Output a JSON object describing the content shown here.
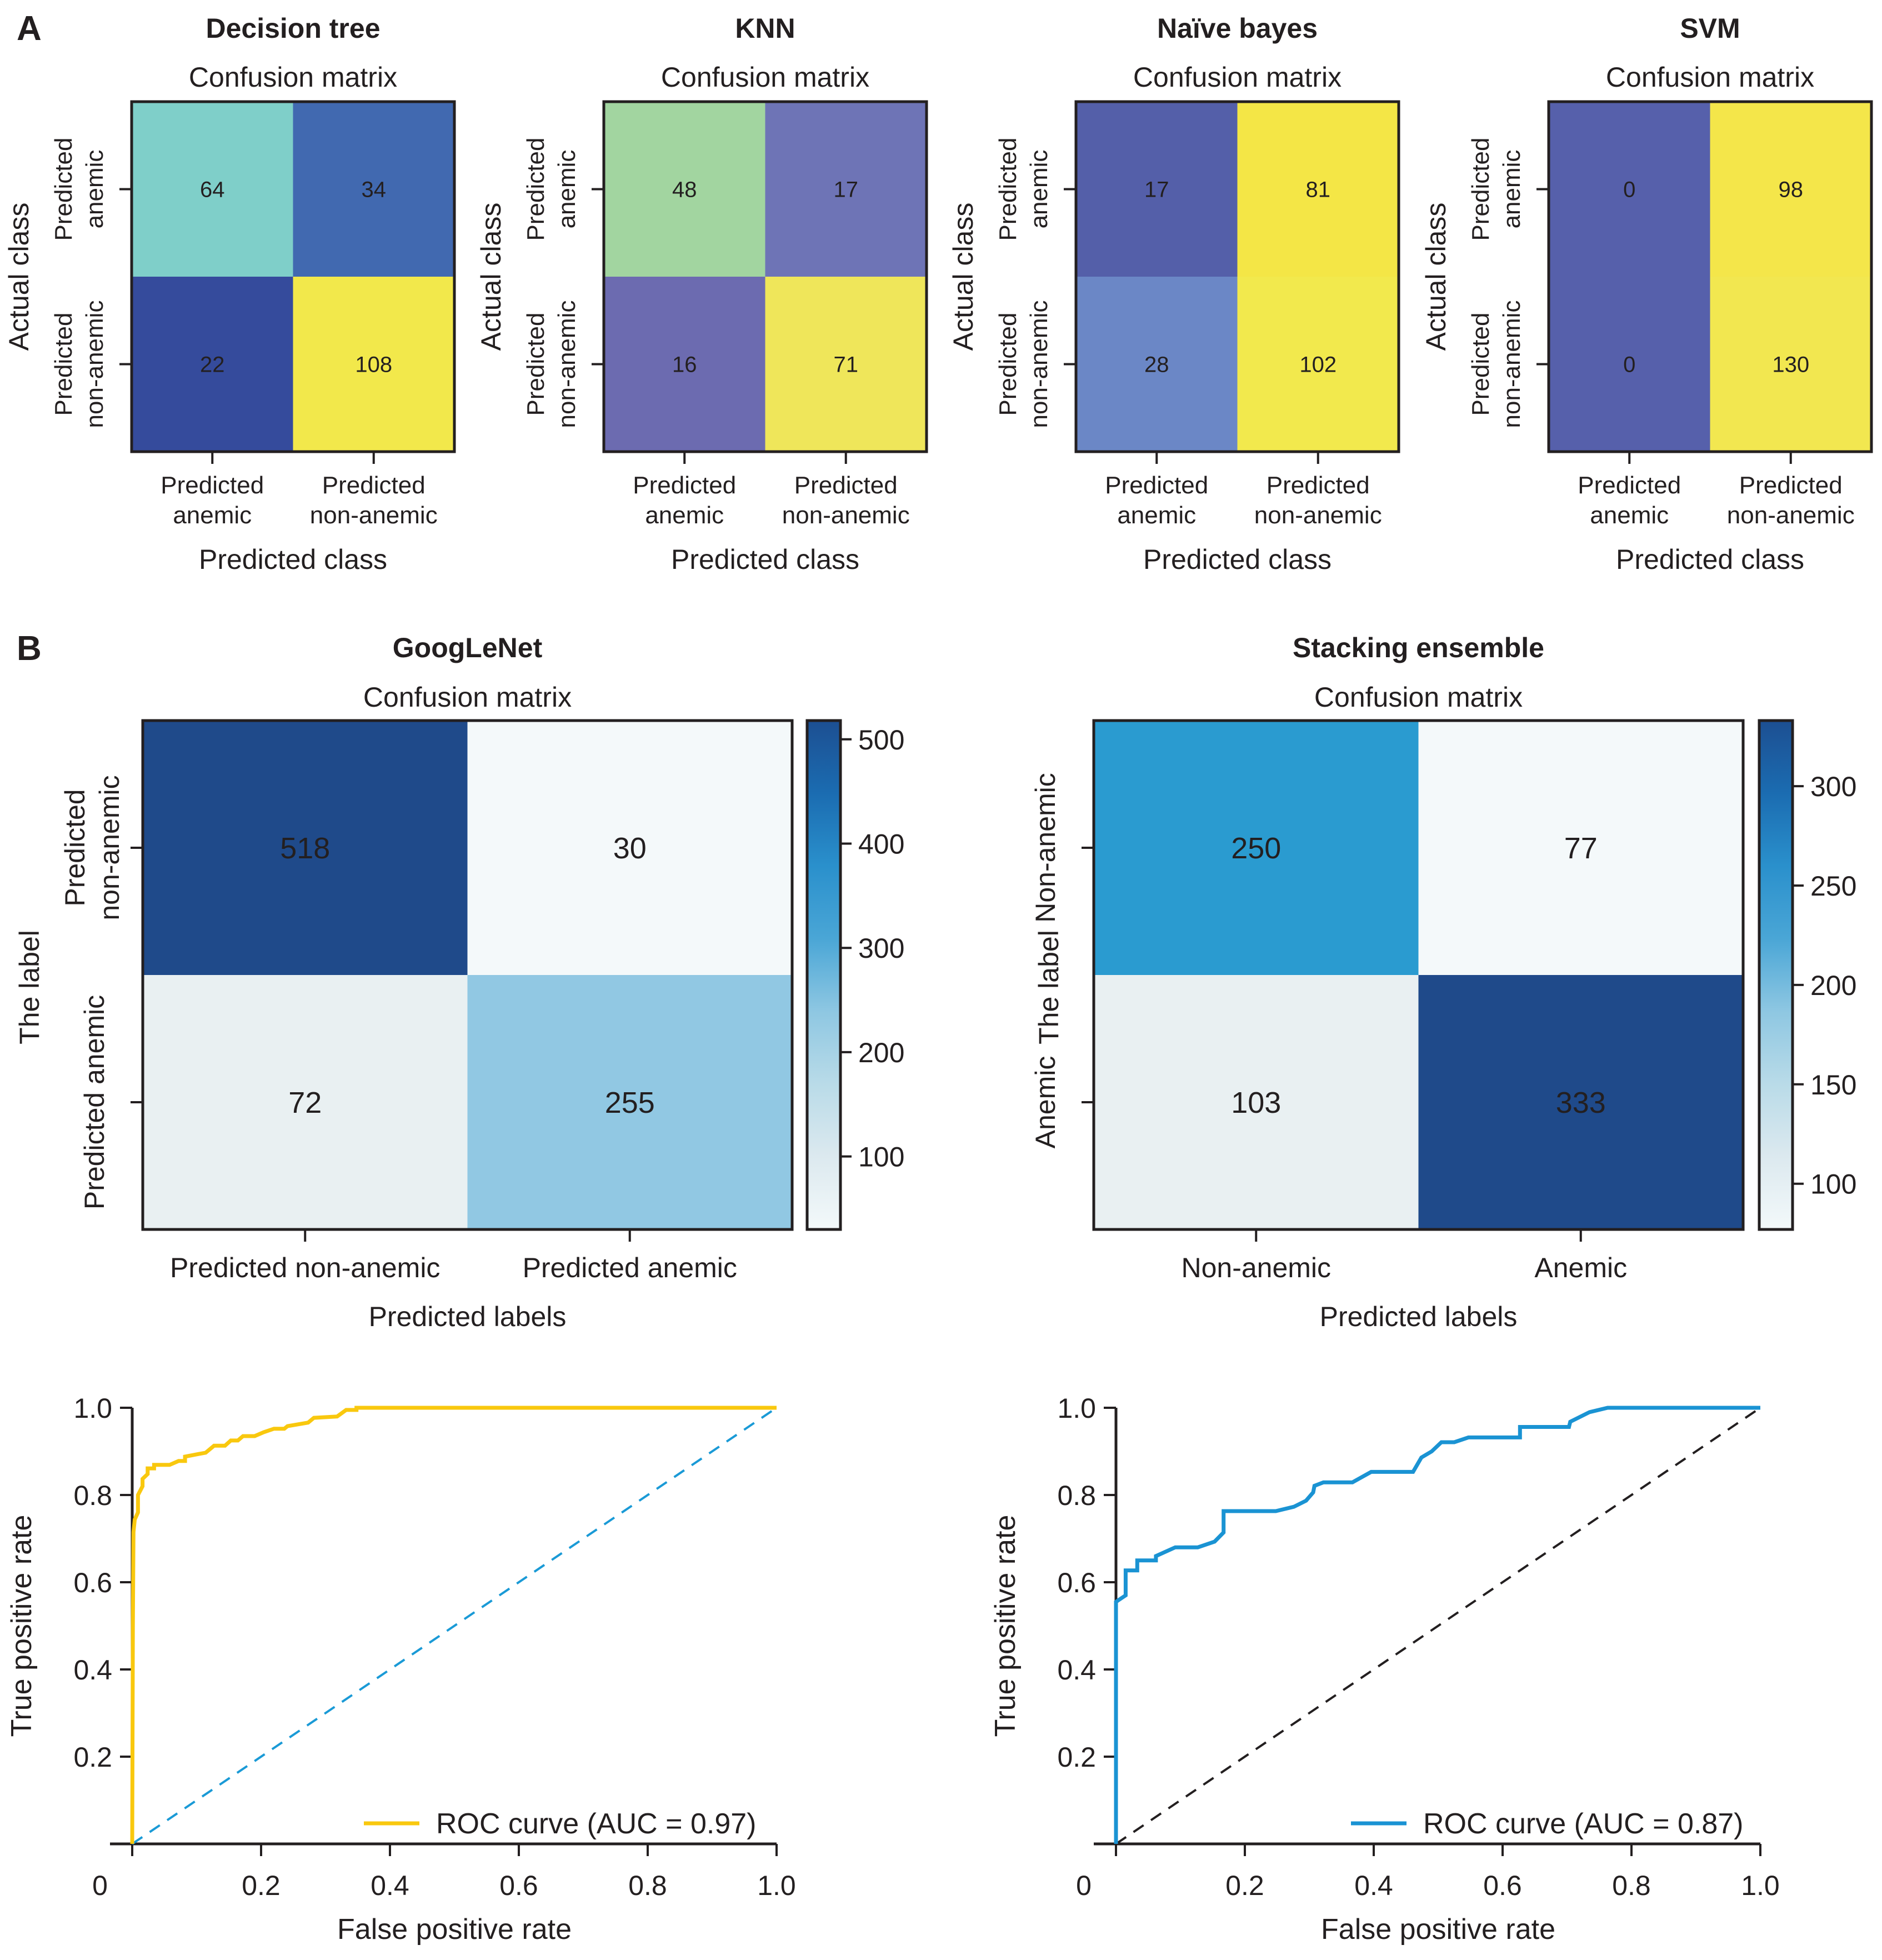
{
  "figure": {
    "panel_a_letter": "A",
    "panel_b_letter": "B"
  },
  "chart_data": [
    {
      "type": "heatmap",
      "id": "dt",
      "model": "Decision tree",
      "title": "Confusion matrix",
      "xlabel": "Predicted class",
      "ylabel": "Actual class",
      "x_ticks": [
        [
          "Predicted",
          "anemic"
        ],
        [
          "Predicted",
          "non-anemic"
        ]
      ],
      "y_ticks": [
        [
          "Predicted",
          "anemic"
        ],
        [
          "Predicted",
          "non-anemic"
        ]
      ],
      "values": [
        [
          64,
          34
        ],
        [
          22,
          108
        ]
      ],
      "cell_colors": [
        [
          "#7fcfc9",
          "#4169b0"
        ],
        [
          "#354b9c",
          "#f2e84b"
        ]
      ],
      "text_colors": [
        [
          "#231f20",
          "#231f20"
        ],
        [
          "#231f20",
          "#231f20"
        ]
      ]
    },
    {
      "type": "heatmap",
      "id": "knn",
      "model": "KNN",
      "title": "Confusion matrix",
      "xlabel": "Predicted class",
      "ylabel": "Actual class",
      "x_ticks": [
        [
          "Predicted",
          "anemic"
        ],
        [
          "Predicted",
          "non-anemic"
        ]
      ],
      "y_ticks": [
        [
          "Predicted",
          "anemic"
        ],
        [
          "Predicted",
          "non-anemic"
        ]
      ],
      "values": [
        [
          48,
          17
        ],
        [
          16,
          71
        ]
      ],
      "cell_colors": [
        [
          "#a2d5a0",
          "#6e74b6"
        ],
        [
          "#6c6bb0",
          "#efe65a"
        ]
      ],
      "text_colors": [
        [
          "#231f20",
          "#231f20"
        ],
        [
          "#231f20",
          "#231f20"
        ]
      ]
    },
    {
      "type": "heatmap",
      "id": "nb",
      "model": "Naïve bayes",
      "title": "Confusion matrix",
      "xlabel": "Predicted class",
      "ylabel": "Actual class",
      "x_ticks": [
        [
          "Predicted",
          "anemic"
        ],
        [
          "Predicted",
          "non-anemic"
        ]
      ],
      "y_ticks": [
        [
          "Predicted",
          "anemic"
        ],
        [
          "Predicted",
          "non-anemic"
        ]
      ],
      "values": [
        [
          17,
          81
        ],
        [
          28,
          102
        ]
      ],
      "cell_colors": [
        [
          "#545fa9",
          "#f4e646"
        ],
        [
          "#6b87c6",
          "#f2e94d"
        ]
      ],
      "text_colors": [
        [
          "#231f20",
          "#231f20"
        ],
        [
          "#231f20",
          "#231f20"
        ]
      ]
    },
    {
      "type": "heatmap",
      "id": "svm",
      "model": "SVM",
      "title": "Confusion matrix",
      "xlabel": "Predicted class",
      "ylabel": "Actual class",
      "x_ticks": [
        [
          "Predicted",
          "anemic"
        ],
        [
          "Predicted",
          "non-anemic"
        ]
      ],
      "y_ticks": [
        [
          "Predicted",
          "anemic"
        ],
        [
          "Predicted",
          "non-anemic"
        ]
      ],
      "values": [
        [
          0,
          98
        ],
        [
          0,
          130
        ]
      ],
      "cell_colors": [
        [
          "#5660ab",
          "#f4e64a"
        ],
        [
          "#5660ab",
          "#f2e750"
        ]
      ],
      "text_colors": [
        [
          "#231f20",
          "#231f20"
        ],
        [
          "#231f20",
          "#231f20"
        ]
      ]
    },
    {
      "type": "heatmap",
      "id": "googlenet",
      "model": "GoogLeNet",
      "title": "Confusion matrix",
      "xlabel": "Predicted labels",
      "ylabel": "The label",
      "x_ticks": [
        [
          "Predicted non-anemic"
        ],
        [
          "Predicted anemic"
        ]
      ],
      "y_ticks": [
        [
          "Predicted",
          "non-anemic"
        ],
        [
          "Predicted anemic"
        ]
      ],
      "values": [
        [
          518,
          30
        ],
        [
          72,
          255
        ]
      ],
      "cell_colors": [
        [
          "#1f4a8a",
          "#f4f9fa"
        ],
        [
          "#e9f0f2",
          "#91c8e3"
        ]
      ],
      "text_colors": [
        [
          "#ffffff",
          "#231f20"
        ],
        [
          "#231f20",
          "#231f20"
        ]
      ],
      "colorbar": {
        "range": [
          30,
          518
        ],
        "ticks": [
          100,
          200,
          300,
          400,
          500
        ],
        "colormap": "Blues",
        "stops": [
          "#f3f9fa",
          "#dce9ef",
          "#b9dbe8",
          "#8ec7e2",
          "#4aa6d6",
          "#2a90cc",
          "#1b6cb1",
          "#1c4f92"
        ]
      }
    },
    {
      "type": "heatmap",
      "id": "stacking",
      "model": "Stacking ensemble",
      "title": "Confusion matrix",
      "xlabel": "Predicted labels",
      "ylabel": "The label",
      "x_ticks": [
        [
          "Non-anemic"
        ],
        [
          "Anemic"
        ]
      ],
      "y_ticks": [
        [
          "Non-anemic"
        ],
        [
          "Anemic"
        ]
      ],
      "values": [
        [
          250,
          77
        ],
        [
          103,
          333
        ]
      ],
      "cell_colors": [
        [
          "#2a9bd0",
          "#f4f9fa"
        ],
        [
          "#e9f0f2",
          "#1f4a8a"
        ]
      ],
      "text_colors": [
        [
          "#231f20",
          "#231f20"
        ],
        [
          "#231f20",
          "#ffffff"
        ]
      ],
      "colorbar": {
        "range": [
          77,
          333
        ],
        "ticks": [
          100,
          150,
          200,
          250,
          300
        ],
        "colormap": "Blues",
        "stops": [
          "#f3f9fa",
          "#dce9ef",
          "#b9dbe8",
          "#8ec7e2",
          "#4aa6d6",
          "#2a90cc",
          "#1b6cb1",
          "#1c4f92"
        ]
      }
    },
    {
      "type": "line",
      "id": "roc-googlenet",
      "xlabel": "False positive rate",
      "ylabel": "True positive rate",
      "xlim": [
        0,
        1.0
      ],
      "ylim": [
        0,
        1.0
      ],
      "x_ticks": [
        0,
        0.2,
        0.4,
        0.6,
        0.8,
        1.0
      ],
      "x_tick_labels": [
        "0",
        "0.2",
        "0.4",
        "0.6",
        "0.8",
        "1.0"
      ],
      "y_ticks": [
        0.2,
        0.4,
        0.6,
        0.8,
        1.0
      ],
      "y_tick_labels": [
        "0.2",
        "0.4",
        "0.6",
        "0.8",
        "1.0"
      ],
      "legend": "bottom-right",
      "series": [
        {
          "name": "ROC curve (AUC = 0.97)",
          "color": "#f9c80e",
          "style": "solid",
          "x": [
            0,
            0.001,
            0.002,
            0.004,
            0.009,
            0.009,
            0.016,
            0.016,
            0.024,
            0.024,
            0.034,
            0.034,
            0.058,
            0.072,
            0.082,
            0.082,
            0.103,
            0.114,
            0.127,
            0.144,
            0.153,
            0.164,
            0.172,
            0.19,
            0.204,
            0.22,
            0.236,
            0.241,
            0.273,
            0.282,
            0.318,
            0.332,
            0.348,
            0.348,
            1.0
          ],
          "y": [
            0,
            0.5,
            0.715,
            0.744,
            0.76,
            0.8,
            0.82,
            0.837,
            0.848,
            0.861,
            0.861,
            0.869,
            0.869,
            0.878,
            0.878,
            0.888,
            0.894,
            0.897,
            0.913,
            0.913,
            0.925,
            0.925,
            0.935,
            0.935,
            0.944,
            0.952,
            0.952,
            0.958,
            0.966,
            0.977,
            0.98,
            0.995,
            0.995,
            1.0,
            1.0
          ]
        },
        {
          "name": "chance",
          "color": "#1a9ad6",
          "style": "dashed",
          "x": [
            0,
            1.0
          ],
          "y": [
            0,
            1.0
          ]
        }
      ]
    },
    {
      "type": "line",
      "id": "roc-stacking",
      "xlabel": "False positive rate",
      "ylabel": "True positive rate",
      "xlim": [
        0,
        1.0
      ],
      "ylim": [
        0,
        1.0
      ],
      "x_ticks": [
        0,
        0.2,
        0.4,
        0.6,
        0.8,
        1.0
      ],
      "x_tick_labels": [
        "0",
        "0.2",
        "0.4",
        "0.6",
        "0.8",
        "1.0"
      ],
      "y_ticks": [
        0.2,
        0.4,
        0.6,
        0.8,
        1.0
      ],
      "y_tick_labels": [
        "0.2",
        "0.4",
        "0.6",
        "0.8",
        "1.0"
      ],
      "legend": "bottom-right",
      "series": [
        {
          "name": "ROC curve (AUC = 0.87)",
          "color": "#1a93d3",
          "style": "solid",
          "x": [
            0,
            0,
            0.005,
            0.015,
            0.015,
            0.033,
            0.033,
            0.062,
            0.062,
            0.092,
            0.127,
            0.153,
            0.167,
            0.167,
            0.248,
            0.276,
            0.295,
            0.306,
            0.308,
            0.322,
            0.367,
            0.396,
            0.461,
            0.474,
            0.49,
            0.505,
            0.525,
            0.547,
            0.627,
            0.627,
            0.703,
            0.705,
            0.735,
            0.763,
            1.0
          ],
          "y": [
            0,
            0.555,
            0.56,
            0.57,
            0.627,
            0.627,
            0.65,
            0.65,
            0.66,
            0.68,
            0.68,
            0.693,
            0.714,
            0.763,
            0.763,
            0.773,
            0.787,
            0.806,
            0.821,
            0.829,
            0.829,
            0.853,
            0.853,
            0.886,
            0.9,
            0.921,
            0.921,
            0.932,
            0.932,
            0.956,
            0.956,
            0.968,
            0.99,
            1.0,
            1.0
          ]
        },
        {
          "name": "chance",
          "color": "#231f20",
          "style": "dashed",
          "x": [
            0,
            1.0
          ],
          "y": [
            0,
            1.0
          ]
        }
      ]
    }
  ]
}
